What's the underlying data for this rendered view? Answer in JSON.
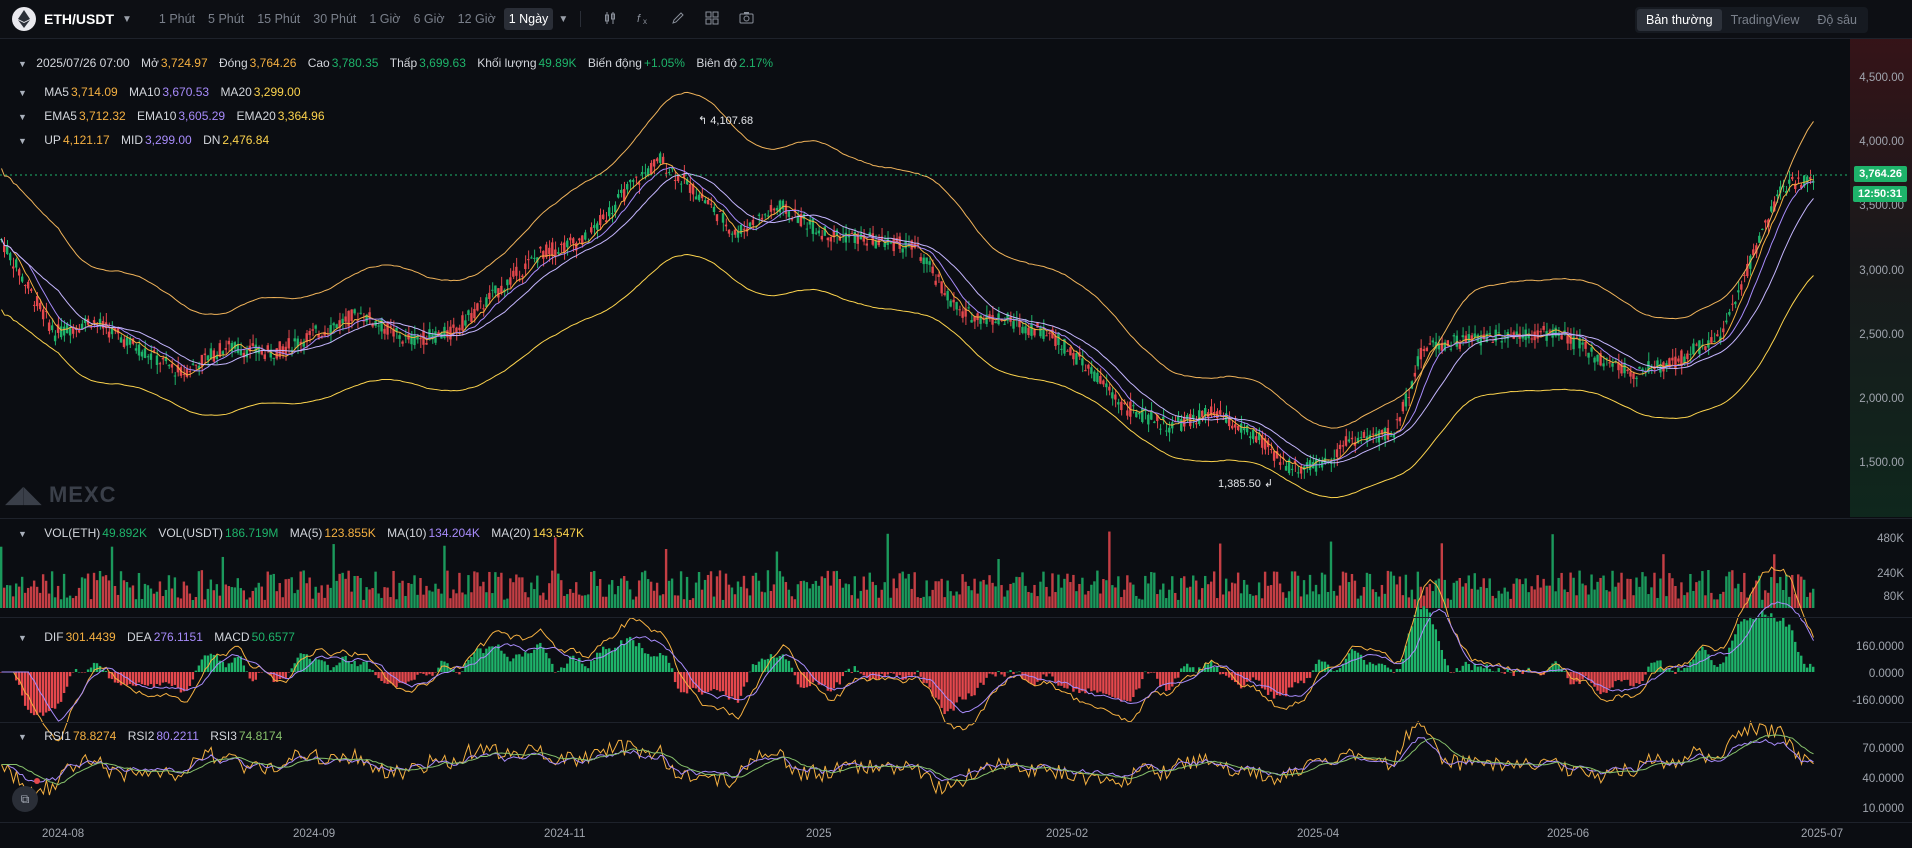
{
  "header": {
    "pair": "ETH/USDT",
    "intervals": [
      {
        "label": "1 Phút",
        "active": false
      },
      {
        "label": "5 Phút",
        "active": false
      },
      {
        "label": "15 Phút",
        "active": false
      },
      {
        "label": "30 Phút",
        "active": false
      },
      {
        "label": "1 Giờ",
        "active": false
      },
      {
        "label": "6 Giờ",
        "active": false
      },
      {
        "label": "12 Giờ",
        "active": false
      },
      {
        "label": "1 Ngày",
        "active": true
      }
    ],
    "tools": [
      "indicator-icon",
      "formula-icon",
      "pencil-icon",
      "layout-grid-icon",
      "camera-icon"
    ],
    "view_tabs": [
      {
        "label": "Bản thường",
        "active": true
      },
      {
        "label": "TradingView",
        "active": false
      },
      {
        "label": "Độ sâu",
        "active": false
      }
    ]
  },
  "ohlc": {
    "date": "2025/07/26 07:00",
    "open_label": "Mở",
    "open": "3,724.97",
    "close_label": "Đóng",
    "close": "3,764.26",
    "high_label": "Cao",
    "high": "3,780.35",
    "low_label": "Thấp",
    "low": "3,699.63",
    "volume_label": "Khối lượng",
    "volume": "49.89K",
    "change_label": "Biến động",
    "change": "+1.05%",
    "amplitude_label": "Biên độ",
    "amplitude": "2.17%"
  },
  "ma": {
    "ma5_label": "MA5",
    "ma5": "3,714.09",
    "ma10_label": "MA10",
    "ma10": "3,670.53",
    "ma20_label": "MA20",
    "ma20": "3,299.00"
  },
  "ema": {
    "ema5_label": "EMA5",
    "ema5": "3,712.32",
    "ema10_label": "EMA10",
    "ema10": "3,605.29",
    "ema20_label": "EMA20",
    "ema20": "3,364.96"
  },
  "boll": {
    "up_label": "UP",
    "up": "4,121.17",
    "mid_label": "MID",
    "mid": "3,299.00",
    "dn_label": "DN",
    "dn": "2,476.84"
  },
  "vol": {
    "eth_label": "VOL(ETH)",
    "eth": "49.892K",
    "usdt_label": "VOL(USDT)",
    "usdt": "186.719M",
    "ma5_label": "MA(5)",
    "ma5": "123.855K",
    "ma10_label": "MA(10)",
    "ma10": "134.204K",
    "ma20_label": "MA(20)",
    "ma20": "143.547K"
  },
  "macd": {
    "dif_label": "DIF",
    "dif": "301.4439",
    "dea_label": "DEA",
    "dea": "276.1151",
    "macd_label": "MACD",
    "macd": "50.6577"
  },
  "rsi": {
    "rsi1_label": "RSI1",
    "rsi1": "78.8274",
    "rsi2_label": "RSI2",
    "rsi2": "80.2211",
    "rsi3_label": "RSI3",
    "rsi3": "74.8174"
  },
  "price_axis": [
    "4,500.00",
    "4,000.00",
    "3,500.00",
    "3,000.00",
    "2,500.00",
    "2,000.00",
    "1,500.00"
  ],
  "vol_axis": [
    "480K",
    "240K",
    "80K"
  ],
  "macd_axis": [
    "160.0000",
    "0.0000",
    "-160.0000"
  ],
  "rsi_axis": [
    "70.0000",
    "40.0000",
    "10.0000"
  ],
  "time_axis": [
    "2024-08",
    "2024-09",
    "2024-11",
    "2025",
    "2025-02",
    "2025-04",
    "2025-06",
    "2025-07"
  ],
  "last_price": "3,764.26",
  "countdown": "12:50:31",
  "high_annotation": "4,107.68",
  "low_annotation": "1,385.50",
  "watermark": "MEXC",
  "colors": {
    "up": "#1eb36a",
    "down": "#e5484d",
    "ma5": "#f5b041",
    "ma10": "#a78bfa",
    "ma20": "#fcd34d",
    "boll": "#f0b35a",
    "bg": "#0b0d12"
  }
}
